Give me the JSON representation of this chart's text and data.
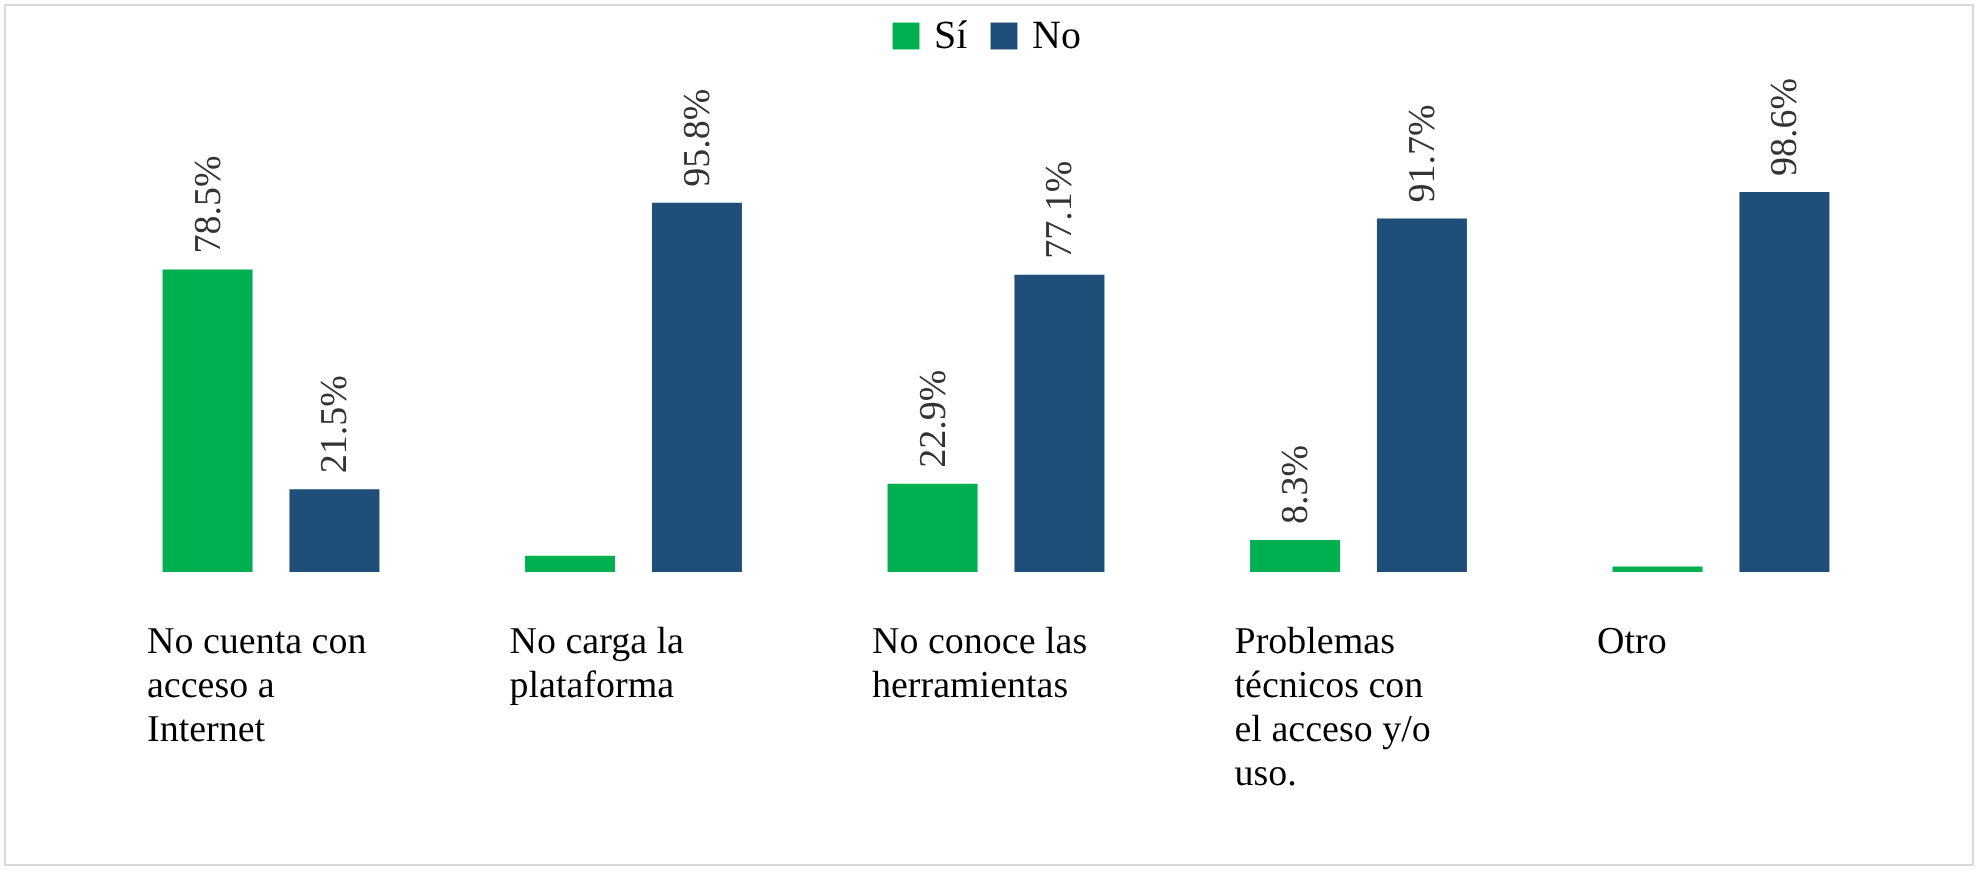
{
  "chart_data": {
    "type": "bar",
    "categories": [
      "No cuenta con acceso a Internet",
      "No carga la plataforma",
      "No conoce las herramientas",
      "Problemas técnicos con el acceso y/o uso.",
      "Otro"
    ],
    "series": [
      {
        "name": "Sí",
        "color": "#00b050",
        "values": [
          78.5,
          4.2,
          22.9,
          8.3,
          1.4
        ],
        "value_labels": [
          "78.5%",
          null,
          "22.9%",
          "8.3%",
          null
        ]
      },
      {
        "name": "No",
        "color": "#1f4e79",
        "values": [
          21.5,
          95.8,
          77.1,
          91.7,
          98.6
        ],
        "value_labels": [
          "21.5%",
          "95.8%",
          "77.1%",
          "91.7%",
          "98.6%"
        ]
      }
    ],
    "legend": "top"
  }
}
